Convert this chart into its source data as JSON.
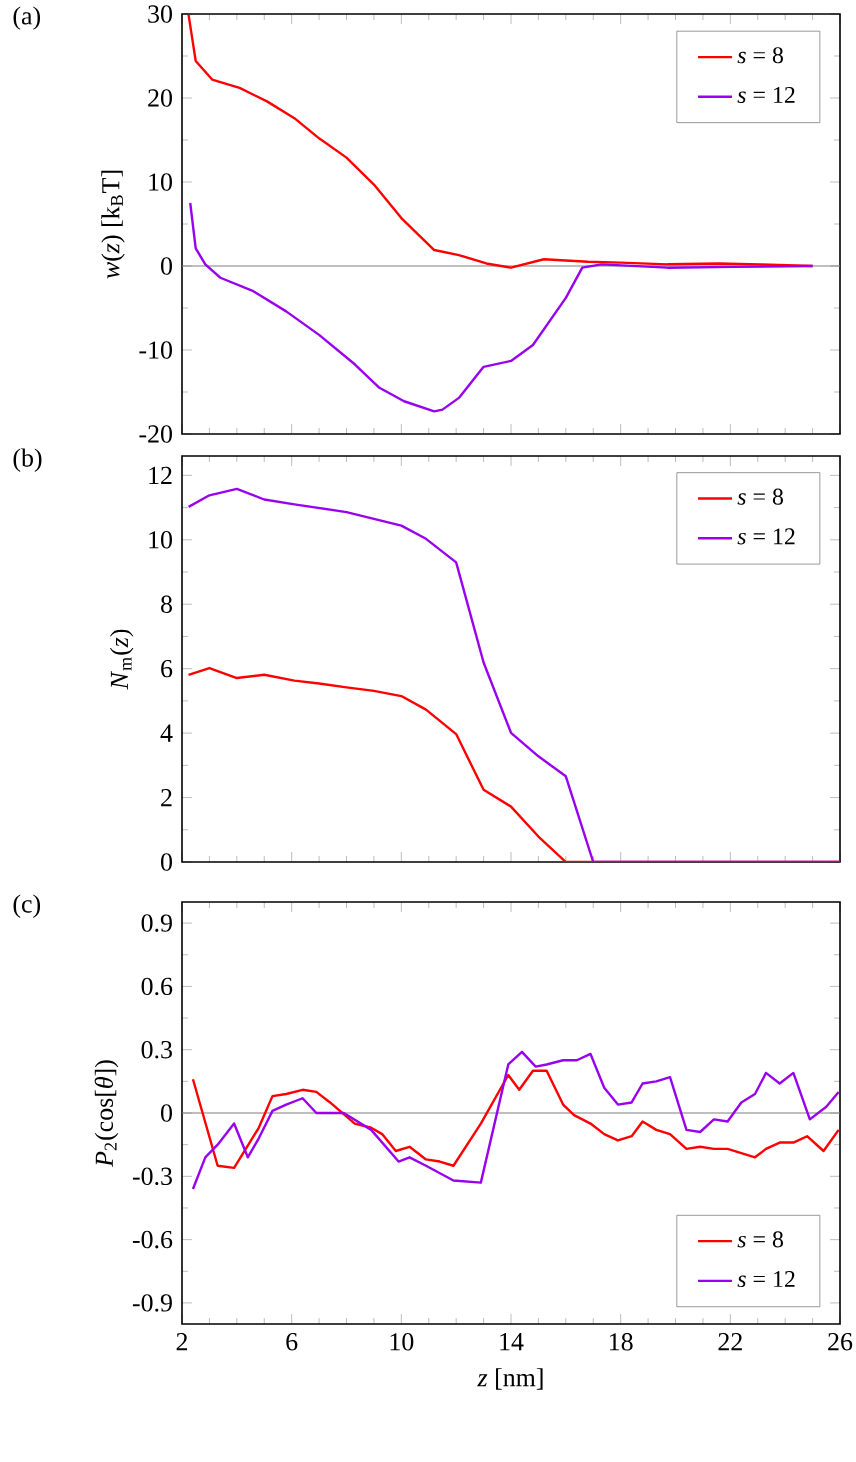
{
  "chart_data": [
    {
      "type": "line",
      "ylabel": "*w*(*z*) [k$_{B}$T]",
      "annotations": [
        "(a)"
      ],
      "xlim": [
        2,
        26
      ],
      "ylim": [
        -20,
        30
      ],
      "xticks": [
        2,
        6,
        10,
        14,
        18,
        22,
        26
      ],
      "yticks": [
        -20,
        -10,
        0,
        10,
        20,
        30
      ],
      "tick_labels": "y",
      "legend": "top right",
      "ref_lines": [
        {
          "axis": "y",
          "value": 0,
          "color": "#808080"
        }
      ],
      "series": [
        {
          "name": "*s* =  8",
          "color": "#ff0000",
          "x": [
            2.24,
            2.5,
            3.1,
            4.1,
            5.1,
            6.1,
            7.0,
            8.0,
            9.0,
            10.0,
            11.2,
            12.1,
            13.1,
            14.0,
            15.2,
            16.8,
            18.0,
            19.7,
            21.6,
            23.1,
            25.0
          ],
          "values": [
            29.9,
            24.4,
            22.2,
            21.2,
            19.6,
            17.6,
            15.2,
            12.9,
            9.7,
            5.7,
            1.9,
            1.3,
            0.3,
            -0.2,
            0.8,
            0.5,
            0.4,
            0.2,
            0.3,
            0.2,
            0
          ]
        },
        {
          "name": "*s* = 12",
          "color": "#9900ee",
          "x": [
            2.3,
            2.5,
            2.85,
            3.4,
            4.6,
            5.8,
            7.0,
            8.3,
            9.2,
            10.1,
            11.2,
            11.5,
            12.1,
            13.0,
            14.0,
            14.8,
            16.0,
            16.6,
            17.3,
            19.7,
            22.1,
            25.0
          ],
          "values": [
            7.5,
            2.1,
            0.2,
            -1.4,
            -3.0,
            -5.4,
            -8.2,
            -11.7,
            -14.5,
            -16.1,
            -17.3,
            -17.1,
            -15.7,
            -12.0,
            -11.3,
            -9.4,
            -3.8,
            -0.2,
            0.2,
            -0.2,
            -0.1,
            0
          ]
        }
      ]
    },
    {
      "type": "line",
      "ylabel": "*N*$_{m}$(*z*)",
      "annotations": [
        "(b)"
      ],
      "xlim": [
        2,
        26
      ],
      "ylim": [
        0,
        12.6
      ],
      "xticks": [
        2,
        6,
        10,
        14,
        18,
        22,
        26
      ],
      "yticks": [
        0,
        2,
        4,
        6,
        8,
        10,
        12
      ],
      "tick_labels": "y",
      "legend": "top right",
      "series": [
        {
          "name": "*s* =  8",
          "color": "#ff0000",
          "x": [
            2.24,
            3.0,
            4.0,
            5.0,
            6.1,
            7.0,
            8.0,
            9.0,
            10.0,
            10.9,
            12.0,
            13.0,
            14.0,
            15.0,
            16.0,
            17.0,
            26.0
          ],
          "values": [
            5.81,
            6.02,
            5.71,
            5.81,
            5.63,
            5.54,
            5.42,
            5.31,
            5.15,
            4.73,
            3.97,
            2.24,
            1.72,
            0.79,
            0,
            0,
            0
          ]
        },
        {
          "name": "*s* = 12",
          "color": "#9900ee",
          "x": [
            2.24,
            3.0,
            4.0,
            5.0,
            6.1,
            8.0,
            10.0,
            10.9,
            12.0,
            13.0,
            14.0,
            15.0,
            16.0,
            17.0,
            26.0
          ],
          "values": [
            11.02,
            11.38,
            11.58,
            11.25,
            11.1,
            10.86,
            10.44,
            10.03,
            9.3,
            6.19,
            4.01,
            3.28,
            2.66,
            0,
            0
          ]
        }
      ]
    },
    {
      "type": "line",
      "xlabel": "*z* [nm]",
      "ylabel": "*P*$_{2}$(cos[*θ*])",
      "annotations": [
        "(c)"
      ],
      "xlim": [
        2,
        26
      ],
      "ylim": [
        -1,
        1
      ],
      "xticks": [
        2,
        6,
        10,
        14,
        18,
        22,
        26
      ],
      "yticks": [
        -0.9,
        -0.6,
        -0.3,
        0,
        0.3,
        0.6,
        0.9
      ],
      "legend": "bottom right",
      "ref_lines": [
        {
          "axis": "y",
          "value": 0,
          "color": "#808080"
        }
      ],
      "series": [
        {
          "name": "*s* =  8",
          "color": "#ff0000",
          "x": [
            2.4,
            3.3,
            3.9,
            4.8,
            5.3,
            5.8,
            6.4,
            6.9,
            7.4,
            8.3,
            8.9,
            9.3,
            9.8,
            10.3,
            10.9,
            11.4,
            11.9,
            12.9,
            13.9,
            14.3,
            14.8,
            15.3,
            15.9,
            16.3,
            16.9,
            17.4,
            17.9,
            18.4,
            18.8,
            19.3,
            19.8,
            20.4,
            20.9,
            21.4,
            21.9,
            22.9,
            23.3,
            23.8,
            24.3,
            24.8,
            25.4,
            25.95
          ],
          "values": [
            0.16,
            -0.25,
            -0.26,
            -0.07,
            0.08,
            0.09,
            0.11,
            0.1,
            0.05,
            -0.05,
            -0.07,
            -0.1,
            -0.18,
            -0.16,
            -0.22,
            -0.23,
            -0.25,
            -0.05,
            0.18,
            0.11,
            0.2,
            0.2,
            0.04,
            -0.01,
            -0.05,
            -0.1,
            -0.13,
            -0.11,
            -0.04,
            -0.08,
            -0.1,
            -0.17,
            -0.16,
            -0.17,
            -0.17,
            -0.21,
            -0.17,
            -0.14,
            -0.14,
            -0.11,
            -0.18,
            -0.08
          ]
        },
        {
          "name": "*s* = 12",
          "color": "#9900ee",
          "x": [
            2.4,
            2.85,
            3.3,
            3.9,
            4.4,
            4.8,
            5.3,
            5.8,
            6.4,
            6.9,
            7.4,
            7.9,
            8.9,
            9.9,
            10.3,
            10.9,
            11.9,
            12.9,
            13.9,
            14.4,
            14.9,
            15.3,
            15.9,
            16.4,
            16.9,
            17.4,
            17.9,
            18.4,
            18.8,
            19.3,
            19.8,
            20.4,
            20.9,
            21.4,
            21.9,
            22.4,
            22.9,
            23.3,
            23.8,
            24.3,
            24.9,
            25.5,
            25.95
          ],
          "values": [
            -0.36,
            -0.21,
            -0.15,
            -0.05,
            -0.21,
            -0.12,
            0.01,
            0.04,
            0.07,
            0,
            0,
            0,
            -0.08,
            -0.23,
            -0.21,
            -0.25,
            -0.32,
            -0.33,
            0.23,
            0.29,
            0.22,
            0.23,
            0.25,
            0.25,
            0.28,
            0.12,
            0.04,
            0.05,
            0.14,
            0.15,
            0.17,
            -0.08,
            -0.09,
            -0.03,
            -0.04,
            0.05,
            0.09,
            0.19,
            0.14,
            0.19,
            -0.03,
            0.03,
            0.1
          ]
        }
      ]
    }
  ]
}
